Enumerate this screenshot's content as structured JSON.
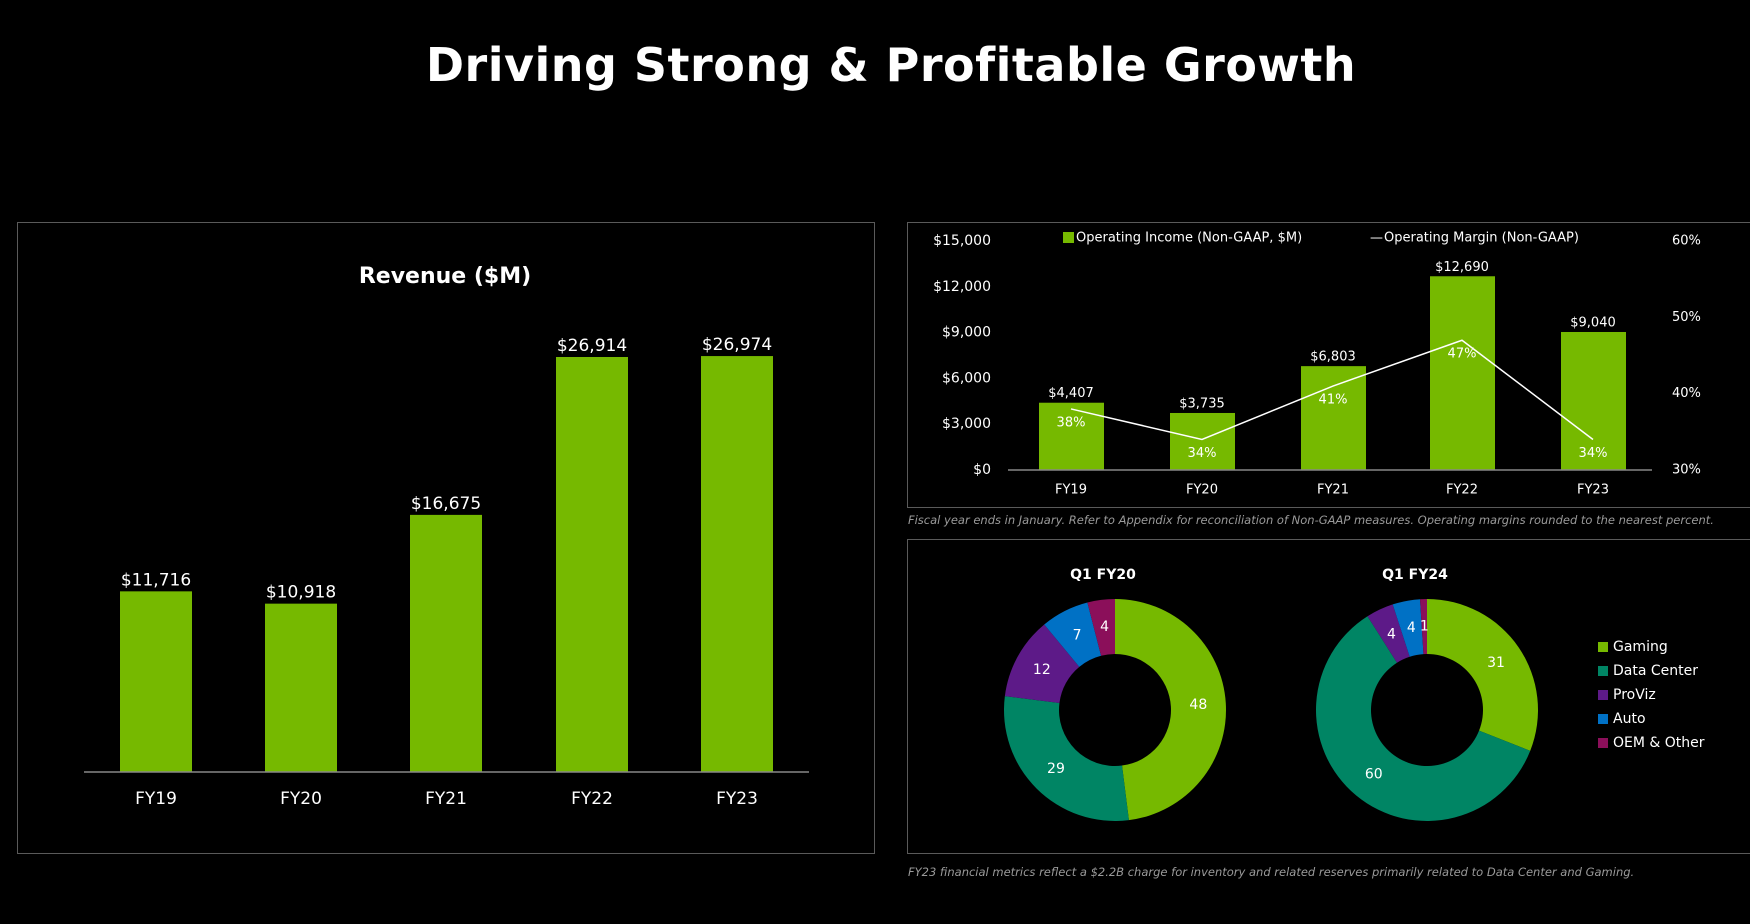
{
  "title": "Driving Strong & Profitable Growth",
  "footnotes": {
    "operating": "Fiscal year ends in January. Refer to Appendix for reconciliation of Non-GAAP measures. Operating margins rounded to the nearest percent.",
    "fy23": "FY23 financial metrics reflect a $2.2B charge for inventory and related reserves primarily related to Data Center and Gaming."
  },
  "colors": {
    "green": "#76b900",
    "data_center": "#008564",
    "proviz": "#5d1a88",
    "auto": "#0071c5",
    "oem": "#8b0f5a"
  },
  "chart_data": [
    {
      "type": "bar",
      "title": "Revenue ($M)",
      "categories": [
        "FY19",
        "FY20",
        "FY21",
        "FY22",
        "FY23"
      ],
      "values": [
        11716,
        10918,
        16675,
        26914,
        26974
      ],
      "labels": [
        "$11,716",
        "$10,918",
        "$16,675",
        "$26,914",
        "$26,974"
      ],
      "ylim": [
        0,
        27000
      ]
    },
    {
      "type": "bar+line",
      "categories": [
        "FY19",
        "FY20",
        "FY21",
        "FY22",
        "FY23"
      ],
      "series": [
        {
          "name": "Operating Income (Non-GAAP, $M)",
          "values": [
            4407,
            3735,
            6803,
            12690,
            9040
          ],
          "labels": [
            "$4,407",
            "$3,735",
            "$6,803",
            "$12,690",
            "$9,040"
          ]
        },
        {
          "name": "Operating Margin (Non-GAAP)",
          "values": [
            38,
            34,
            41,
            47,
            34
          ],
          "labels": [
            "38%",
            "34%",
            "41%",
            "47%",
            "34%"
          ],
          "axis": "right"
        }
      ],
      "legend_line_prefix": "—",
      "y_left": {
        "range": [
          0,
          15000
        ],
        "ticks": [
          "$0",
          "$3,000",
          "$6,000",
          "$9,000",
          "$12,000",
          "$15,000"
        ],
        "tick_values": [
          0,
          3000,
          6000,
          9000,
          12000,
          15000
        ]
      },
      "y_right": {
        "range": [
          30,
          60
        ],
        "ticks": [
          "30%",
          "40%",
          "50%",
          "60%"
        ],
        "tick_values": [
          30,
          40,
          50,
          60
        ]
      },
      "legend": "top"
    },
    {
      "type": "pie",
      "donuts": [
        {
          "title": "Q1 FY20",
          "values": [
            48,
            29,
            12,
            7,
            4
          ]
        },
        {
          "title": "Q1 FY24",
          "values": [
            31,
            60,
            4,
            4,
            1
          ]
        }
      ],
      "legend": [
        "Gaming",
        "Data Center",
        "ProViz",
        "Auto",
        "OEM & Other"
      ],
      "legend_placement": "right"
    }
  ]
}
